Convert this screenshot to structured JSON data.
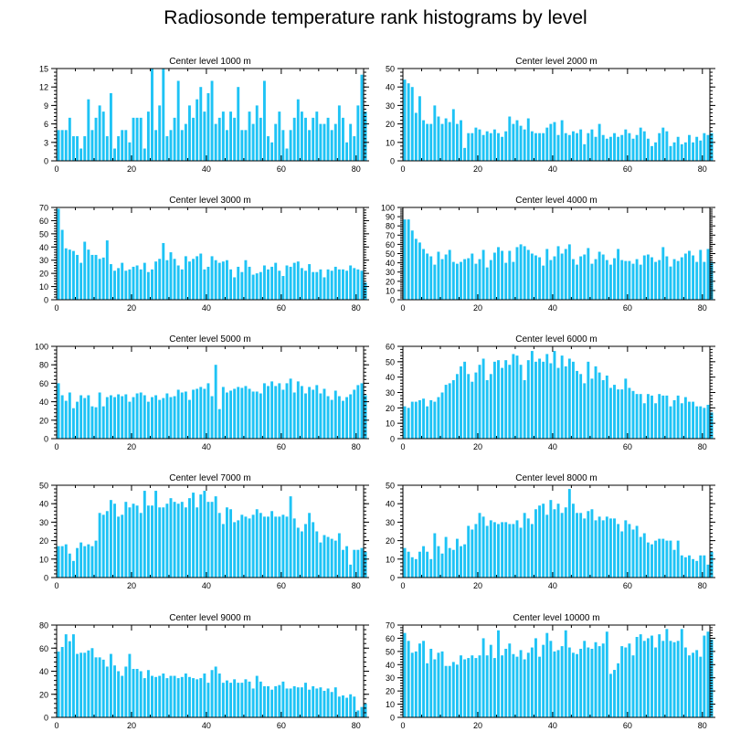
{
  "page": {
    "title": "Radiosonde temperature rank histograms by level"
  },
  "style": {
    "bar_color": "#1EC3F5",
    "axis_color": "#000000"
  },
  "chart_data": [
    {
      "type": "bar",
      "title": "Center level 1000 m",
      "xlim": [
        0,
        82
      ],
      "ylim": [
        0,
        15
      ],
      "xticks": [
        0,
        20,
        40,
        60,
        80
      ],
      "yticks": [
        0,
        3,
        6,
        9,
        12,
        15
      ],
      "values": [
        5,
        5,
        5,
        7,
        4,
        4,
        2,
        4,
        10,
        5,
        7,
        9,
        8,
        4,
        11,
        2,
        4,
        5,
        5,
        3,
        7,
        7,
        7,
        2,
        8,
        15,
        5,
        9,
        15,
        4,
        5,
        7,
        13,
        5,
        6,
        9,
        7,
        10,
        12,
        8,
        11,
        13,
        6,
        7,
        8,
        5,
        8,
        7,
        12,
        5,
        5,
        8,
        6,
        9,
        7,
        13,
        4,
        3,
        6,
        8,
        5,
        2,
        5,
        7,
        10,
        8,
        7,
        5,
        7,
        8,
        6,
        6,
        7,
        5,
        6,
        9,
        7,
        3,
        6,
        4,
        9,
        14,
        8
      ]
    },
    {
      "type": "bar",
      "title": "Center level 2000 m",
      "xlim": [
        0,
        82
      ],
      "ylim": [
        0,
        50
      ],
      "xticks": [
        0,
        20,
        40,
        60,
        80
      ],
      "yticks": [
        0,
        10,
        20,
        30,
        40,
        50
      ],
      "values": [
        44,
        42,
        40,
        26,
        35,
        22,
        20,
        20,
        30,
        24,
        20,
        23,
        21,
        28,
        20,
        22,
        7,
        15,
        15,
        18,
        17,
        14,
        16,
        15,
        17,
        15,
        13,
        16,
        24,
        20,
        22,
        19,
        17,
        23,
        16,
        15,
        15,
        15,
        18,
        20,
        21,
        14,
        22,
        15,
        14,
        16,
        15,
        17,
        9,
        15,
        17,
        13,
        20,
        14,
        12,
        13,
        15,
        13,
        14,
        17,
        15,
        12,
        14,
        18,
        16,
        12,
        8,
        10,
        15,
        18,
        16,
        8,
        10,
        13,
        9,
        10,
        14,
        10,
        13,
        11,
        15,
        14,
        15
      ]
    },
    {
      "type": "bar",
      "title": "Center level 3000 m",
      "xlim": [
        0,
        82
      ],
      "ylim": [
        0,
        70
      ],
      "xticks": [
        0,
        20,
        40,
        60,
        80
      ],
      "yticks": [
        0,
        10,
        20,
        30,
        40,
        50,
        60,
        70
      ],
      "values": [
        69,
        53,
        39,
        38,
        37,
        34,
        28,
        44,
        38,
        34,
        34,
        31,
        32,
        45,
        27,
        22,
        24,
        28,
        22,
        23,
        25,
        26,
        23,
        28,
        21,
        23,
        29,
        31,
        43,
        30,
        36,
        31,
        26,
        23,
        33,
        29,
        31,
        33,
        35,
        23,
        25,
        33,
        30,
        28,
        29,
        30,
        23,
        17,
        25,
        21,
        30,
        25,
        19,
        20,
        21,
        26,
        23,
        25,
        28,
        22,
        18,
        26,
        25,
        28,
        29,
        24,
        22,
        27,
        21,
        21,
        23,
        17,
        23,
        22,
        25,
        23,
        23,
        22,
        26,
        24,
        23,
        22,
        13
      ]
    },
    {
      "type": "bar",
      "title": "Center level 4000 m",
      "xlim": [
        0,
        82
      ],
      "ylim": [
        0,
        100
      ],
      "xticks": [
        0,
        20,
        40,
        60,
        80
      ],
      "yticks": [
        0,
        10,
        20,
        30,
        40,
        50,
        60,
        70,
        80,
        90,
        100
      ],
      "values": [
        87,
        87,
        75,
        66,
        62,
        55,
        50,
        47,
        38,
        52,
        44,
        49,
        54,
        41,
        39,
        41,
        44,
        45,
        50,
        39,
        44,
        54,
        35,
        43,
        51,
        57,
        53,
        40,
        53,
        41,
        57,
        60,
        58,
        54,
        50,
        48,
        46,
        37,
        55,
        43,
        47,
        58,
        50,
        55,
        60,
        44,
        38,
        47,
        49,
        56,
        39,
        44,
        52,
        49,
        43,
        38,
        45,
        55,
        43,
        42,
        42,
        39,
        44,
        38,
        48,
        49,
        46,
        41,
        43,
        57,
        47,
        36,
        44,
        42,
        46,
        50,
        53,
        48,
        41,
        54,
        41,
        55,
        41
      ]
    },
    {
      "type": "bar",
      "title": "Center level 5000 m",
      "xlim": [
        0,
        82
      ],
      "ylim": [
        0,
        100
      ],
      "xticks": [
        0,
        20,
        40,
        60,
        80
      ],
      "yticks": [
        0,
        20,
        40,
        60,
        80,
        100
      ],
      "values": [
        60,
        47,
        41,
        50,
        33,
        40,
        47,
        44,
        47,
        35,
        34,
        50,
        35,
        45,
        47,
        45,
        48,
        46,
        48,
        40,
        45,
        49,
        50,
        47,
        40,
        45,
        47,
        42,
        44,
        49,
        45,
        46,
        53,
        50,
        51,
        42,
        53,
        54,
        56,
        54,
        60,
        46,
        80,
        32,
        56,
        50,
        52,
        54,
        56,
        55,
        57,
        54,
        51,
        51,
        49,
        60,
        57,
        62,
        57,
        60,
        53,
        60,
        65,
        50,
        62,
        57,
        49,
        56,
        53,
        58,
        49,
        54,
        46,
        42,
        52,
        46,
        41,
        45,
        48,
        53,
        58,
        60,
        47
      ]
    },
    {
      "type": "bar",
      "title": "Center level 6000 m",
      "xlim": [
        0,
        82
      ],
      "ylim": [
        0,
        60
      ],
      "xticks": [
        0,
        20,
        40,
        60,
        80
      ],
      "yticks": [
        0,
        10,
        20,
        30,
        40,
        50,
        60
      ],
      "values": [
        21,
        20,
        24,
        24,
        25,
        26,
        21,
        25,
        24,
        27,
        30,
        35,
        36,
        38,
        42,
        47,
        50,
        42,
        37,
        43,
        48,
        52,
        38,
        42,
        50,
        51,
        46,
        51,
        48,
        55,
        54,
        48,
        38,
        51,
        57,
        50,
        52,
        50,
        55,
        49,
        57,
        46,
        54,
        47,
        52,
        50,
        44,
        42,
        36,
        50,
        39,
        47,
        43,
        38,
        41,
        33,
        35,
        32,
        32,
        39,
        33,
        31,
        29,
        29,
        23,
        29,
        28,
        23,
        29,
        28,
        28,
        21,
        25,
        28,
        23,
        27,
        24,
        24,
        21,
        21,
        20,
        22,
        17
      ]
    },
    {
      "type": "bar",
      "title": "Center level 7000 m",
      "xlim": [
        0,
        82
      ],
      "ylim": [
        0,
        50
      ],
      "xticks": [
        0,
        20,
        40,
        60,
        80
      ],
      "yticks": [
        0,
        10,
        20,
        30,
        40,
        50
      ],
      "values": [
        17,
        17,
        18,
        13,
        9,
        16,
        19,
        17,
        18,
        17,
        20,
        35,
        34,
        36,
        42,
        40,
        33,
        34,
        41,
        38,
        40,
        39,
        35,
        47,
        39,
        39,
        47,
        38,
        38,
        40,
        43,
        41,
        40,
        41,
        38,
        43,
        46,
        38,
        45,
        47,
        41,
        41,
        44,
        35,
        29,
        38,
        37,
        30,
        31,
        34,
        33,
        32,
        34,
        37,
        35,
        33,
        33,
        36,
        33,
        33,
        34,
        33,
        44,
        32,
        27,
        25,
        29,
        35,
        30,
        25,
        19,
        23,
        22,
        21,
        20,
        24,
        15,
        17,
        7,
        15,
        15,
        16,
        14
      ]
    },
    {
      "type": "bar",
      "title": "Center level 8000 m",
      "xlim": [
        0,
        82
      ],
      "ylim": [
        0,
        50
      ],
      "xticks": [
        0,
        20,
        40,
        60,
        80
      ],
      "yticks": [
        0,
        10,
        20,
        30,
        40,
        50
      ],
      "values": [
        16,
        14,
        11,
        10,
        14,
        17,
        14,
        10,
        24,
        17,
        13,
        22,
        16,
        15,
        21,
        17,
        18,
        28,
        26,
        29,
        35,
        33,
        28,
        31,
        30,
        29,
        30,
        30,
        29,
        29,
        31,
        27,
        35,
        32,
        29,
        37,
        39,
        40,
        34,
        42,
        37,
        40,
        35,
        38,
        48,
        40,
        35,
        35,
        32,
        36,
        37,
        31,
        33,
        31,
        33,
        32,
        32,
        29,
        25,
        31,
        29,
        26,
        28,
        22,
        24,
        19,
        18,
        20,
        21,
        21,
        20,
        20,
        15,
        20,
        12,
        11,
        12,
        10,
        9,
        12,
        12,
        7,
        14
      ]
    },
    {
      "type": "bar",
      "title": "Center level 9000 m",
      "xlim": [
        0,
        82
      ],
      "ylim": [
        0,
        80
      ],
      "xticks": [
        0,
        20,
        40,
        60,
        80
      ],
      "yticks": [
        0,
        20,
        40,
        60,
        80
      ],
      "values": [
        57,
        61,
        72,
        66,
        72,
        55,
        56,
        56,
        58,
        60,
        52,
        52,
        50,
        44,
        55,
        45,
        40,
        36,
        44,
        55,
        42,
        42,
        40,
        34,
        41,
        36,
        35,
        36,
        38,
        34,
        36,
        36,
        34,
        35,
        38,
        35,
        34,
        33,
        34,
        38,
        30,
        41,
        44,
        38,
        30,
        32,
        30,
        33,
        30,
        30,
        33,
        31,
        25,
        36,
        31,
        27,
        27,
        24,
        27,
        28,
        31,
        25,
        25,
        27,
        26,
        26,
        30,
        24,
        27,
        25,
        26,
        23,
        25,
        22,
        26,
        18,
        19,
        17,
        20,
        18,
        6,
        9,
        12
      ]
    },
    {
      "type": "bar",
      "title": "Center level 10000 m",
      "xlim": [
        0,
        82
      ],
      "ylim": [
        0,
        70
      ],
      "xticks": [
        0,
        20,
        40,
        60,
        80
      ],
      "yticks": [
        0,
        10,
        20,
        30,
        40,
        50,
        60,
        70
      ],
      "values": [
        64,
        58,
        49,
        50,
        56,
        58,
        41,
        52,
        44,
        49,
        50,
        39,
        39,
        42,
        40,
        47,
        44,
        45,
        47,
        45,
        47,
        60,
        47,
        55,
        45,
        66,
        47,
        52,
        56,
        48,
        46,
        51,
        44,
        49,
        53,
        60,
        46,
        55,
        64,
        58,
        50,
        51,
        54,
        66,
        53,
        49,
        48,
        52,
        58,
        53,
        52,
        57,
        54,
        56,
        65,
        33,
        36,
        41,
        54,
        53,
        56,
        47,
        61,
        63,
        58,
        60,
        62,
        53,
        63,
        58,
        67,
        58,
        57,
        58,
        67,
        53,
        47,
        49,
        51,
        46,
        62,
        65,
        59
      ]
    }
  ]
}
